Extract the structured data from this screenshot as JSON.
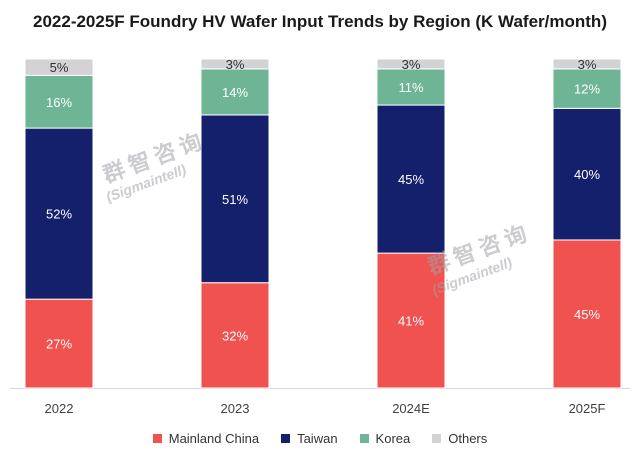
{
  "chart_data": {
    "type": "bar",
    "stacked": true,
    "normalized": true,
    "title": "2022-2025F Foundry HV Wafer Input Trends by Region (K Wafer/month)",
    "categories": [
      "2022",
      "2023",
      "2024E",
      "2025F"
    ],
    "series": [
      {
        "name": "Mainland China",
        "color": "#f0524f",
        "values": [
          27,
          32,
          41,
          45
        ],
        "labels": [
          "27%",
          "32%",
          "41%",
          "45%"
        ]
      },
      {
        "name": "Taiwan",
        "color": "#14206b",
        "values": [
          52,
          51,
          45,
          40
        ],
        "labels": [
          "52%",
          "51%",
          "45%",
          "40%"
        ]
      },
      {
        "name": "Korea",
        "color": "#6eb596",
        "values": [
          16,
          14,
          11,
          12
        ],
        "labels": [
          "16%",
          "14%",
          "11%",
          "12%"
        ]
      },
      {
        "name": "Others",
        "color": "#d3d3d3",
        "values": [
          5,
          3,
          3,
          3
        ],
        "labels": [
          "5%",
          "3%",
          "3%",
          "3%"
        ]
      }
    ],
    "legend_position": "bottom",
    "grid": false
  },
  "watermark": {
    "text_cn": "群智咨询",
    "text_en": "(Sigmaintell)"
  }
}
